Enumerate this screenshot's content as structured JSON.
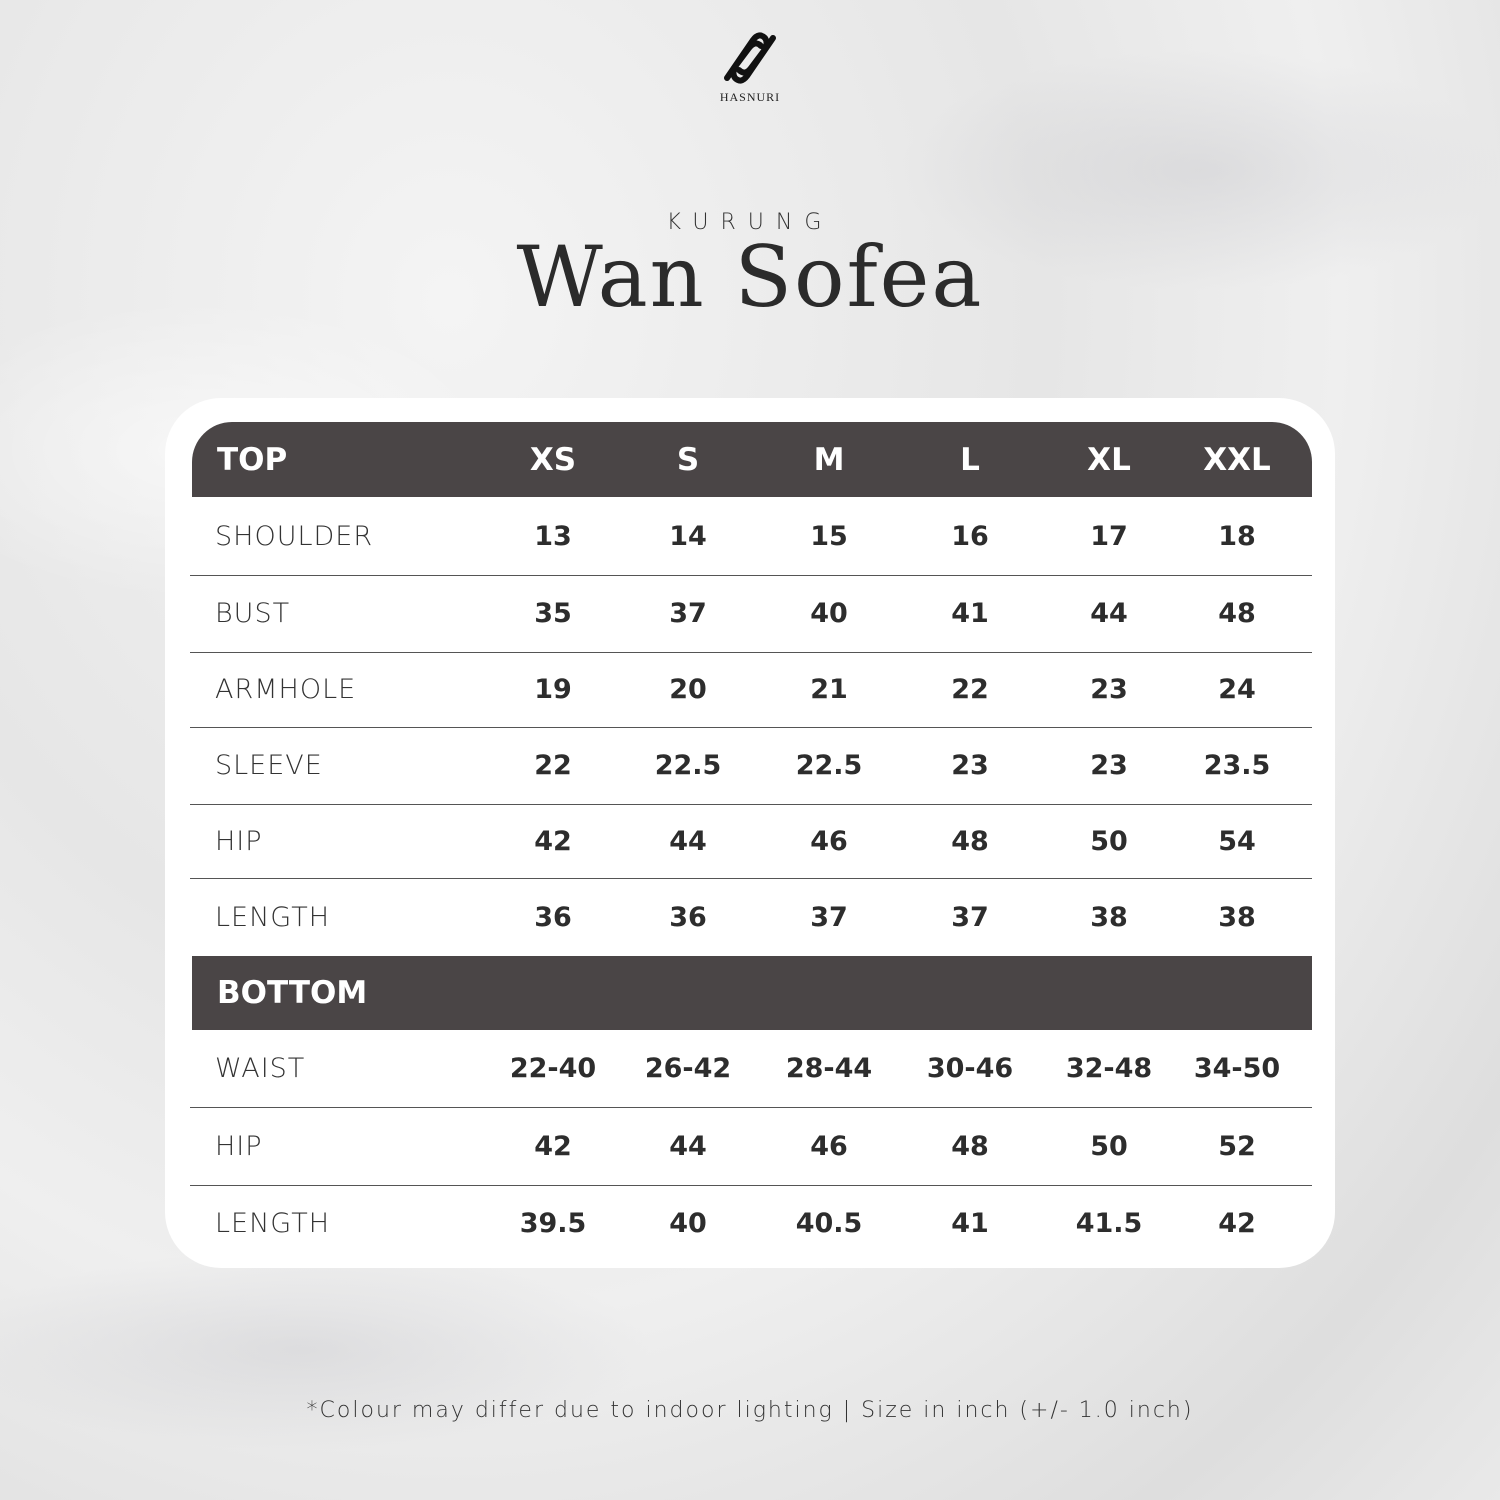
{
  "brand": {
    "name": "HASNURI"
  },
  "subtitle": "KURUNG",
  "title": "Wan Sofea",
  "sizes": [
    "XS",
    "S",
    "M",
    "L",
    "XL",
    "XXL"
  ],
  "top": {
    "header": "TOP",
    "rows": [
      {
        "label": "SHOULDER",
        "values": [
          "13",
          "14",
          "15",
          "16",
          "17",
          "18"
        ]
      },
      {
        "label": "BUST",
        "values": [
          "35",
          "37",
          "40",
          "41",
          "44",
          "48"
        ]
      },
      {
        "label": "ARMHOLE",
        "values": [
          "19",
          "20",
          "21",
          "22",
          "23",
          "24"
        ]
      },
      {
        "label": "SLEEVE",
        "values": [
          "22",
          "22.5",
          "22.5",
          "23",
          "23",
          "23.5"
        ]
      },
      {
        "label": "HIP",
        "values": [
          "42",
          "44",
          "46",
          "48",
          "50",
          "54"
        ]
      },
      {
        "label": "LENGTH",
        "values": [
          "36",
          "36",
          "37",
          "37",
          "38",
          "38"
        ]
      }
    ]
  },
  "bottom": {
    "header": "BOTTOM",
    "rows": [
      {
        "label": "WAIST",
        "values": [
          "22-40",
          "26-42",
          "28-44",
          "30-46",
          "32-48",
          "34-50"
        ]
      },
      {
        "label": "HIP",
        "values": [
          "42",
          "44",
          "46",
          "48",
          "50",
          "52"
        ]
      },
      {
        "label": "LENGTH",
        "values": [
          "39.5",
          "40",
          "40.5",
          "41",
          "41.5",
          "42"
        ]
      }
    ]
  },
  "footer": "*Colour may differ due to indoor lighting | Size in inch (+/- 1.0 inch)"
}
